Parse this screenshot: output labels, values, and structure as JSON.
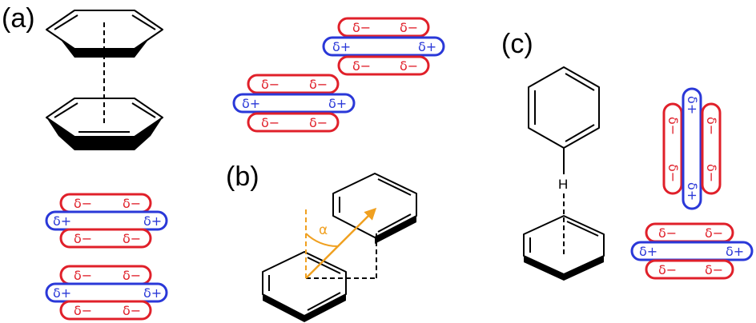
{
  "colors": {
    "negative": "#e0202a",
    "positive": "#2a38d8",
    "angle": "#f0a020",
    "ink": "#000000"
  },
  "panels": {
    "a": "(a)",
    "b": "(b)",
    "c": "(c)"
  },
  "charges": {
    "negative": "δ−",
    "positive": "δ+"
  },
  "angle_symbol": "α",
  "hydrogen": "H"
}
